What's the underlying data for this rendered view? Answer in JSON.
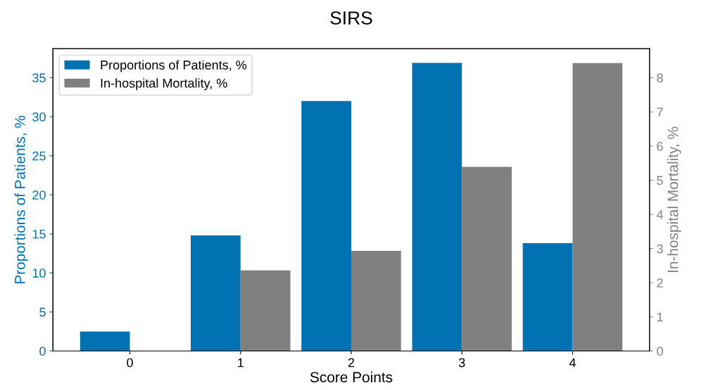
{
  "chart_data": {
    "type": "bar",
    "title": "SIRS",
    "xlabel": "Score Points",
    "ylabel": "Proportions of Patients, %",
    "y2label": "In-hospital Mortality, %",
    "categories": [
      "0",
      "1",
      "2",
      "3",
      "4"
    ],
    "series": [
      {
        "name": "Proportions of Patients, %",
        "color": "#0072b2",
        "values": [
          2.5,
          14.8,
          32.0,
          36.9,
          13.8
        ]
      },
      {
        "name": "In-hospital Mortality, %",
        "color": "#808080",
        "axis": "y2",
        "values": [
          0,
          2.36,
          2.93,
          5.39,
          8.43
        ]
      }
    ],
    "ylim": [
      0,
      38.7
    ],
    "yticks": [
      0,
      5,
      10,
      15,
      20,
      25,
      30,
      35
    ],
    "y2lim": [
      0,
      8.85
    ],
    "y2ticks": [
      0,
      1,
      2,
      3,
      4,
      5,
      6,
      7,
      8
    ],
    "legend": "top left",
    "grid": false
  }
}
